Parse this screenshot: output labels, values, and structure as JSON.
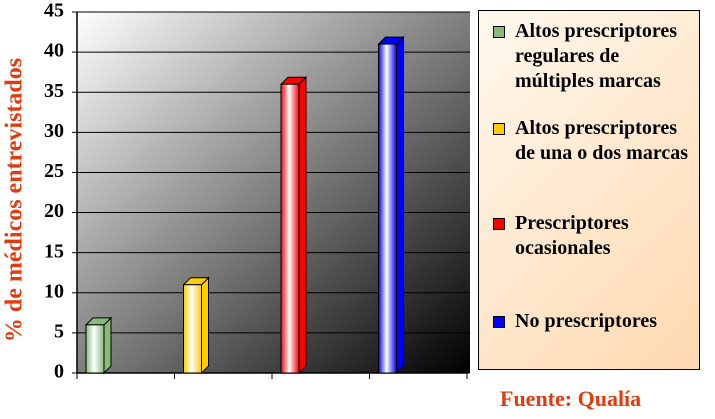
{
  "chart_data": {
    "type": "bar3d",
    "y_label": "% de médicos entrevistados",
    "source": "Fuente: Qualía",
    "categories": [
      null,
      null,
      null,
      null
    ],
    "series": [
      {
        "name": "Altos prescriptores regulares de múltiples marcas",
        "color": "#88bb77",
        "values": [
          6,
          null,
          null,
          null
        ]
      },
      {
        "name": "Altos prescriptores de una o dos marcas",
        "color": "#ffcc00",
        "values": [
          null,
          11,
          null,
          null
        ]
      },
      {
        "name": "Prescriptores ocasionales",
        "color": "#ff0000",
        "values": [
          null,
          null,
          36,
          null
        ]
      },
      {
        "name": "No prescriptores",
        "color": "#0000ff",
        "values": [
          null,
          null,
          null,
          41
        ]
      }
    ],
    "ylim": [
      0,
      45
    ],
    "yticks": [
      0,
      5,
      10,
      15,
      20,
      25,
      30,
      35,
      40,
      45
    ],
    "grid": true
  }
}
